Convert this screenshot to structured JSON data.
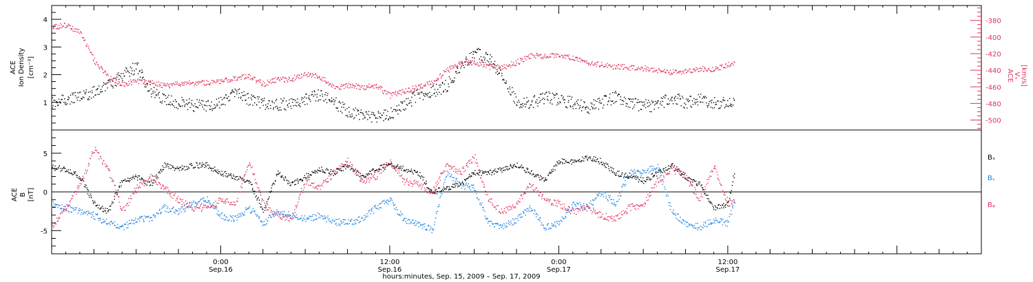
{
  "colors": {
    "black": "#000000",
    "pink": "#e0305a",
    "blue": "#1a7fe0"
  },
  "xaxis": {
    "caption": "hours:minutes, Sep. 15, 2009 – Sep. 17, 2009",
    "ticks": [
      {
        "time": "0:00",
        "date": "Sep.16"
      },
      {
        "time": "12:00",
        "date": "Sep.16"
      },
      {
        "time": "0:00",
        "date": "Sep.17"
      },
      {
        "time": "12:00",
        "date": "Sep.17"
      }
    ]
  },
  "chart_data": [
    {
      "type": "scatter",
      "title": "",
      "x_unit": "hours from 2009-09-15 00:00",
      "xlim": [
        12,
        78
      ],
      "left_axis": {
        "label_lines": [
          "ACE",
          "Ion Density"
        ],
        "unit": "[cm⁻³]",
        "ylim": [
          0,
          4.5
        ],
        "ticks": [
          1,
          2,
          3,
          4
        ]
      },
      "right_axis": {
        "label": "Vₓ",
        "label_extra": "ACE",
        "unit": "[km/s]",
        "ylim": [
          -512,
          -362
        ],
        "ticks": [
          -380,
          -400,
          -420,
          -440,
          -460,
          -480,
          -500
        ]
      },
      "series": [
        {
          "axis": "left",
          "color": "#000000",
          "points": [
            [
              12.0,
              1.0
            ],
            [
              13.0,
              1.1
            ],
            [
              14.0,
              1.2
            ],
            [
              15.0,
              1.4
            ],
            [
              16.0,
              1.6
            ],
            [
              17.0,
              2.0
            ],
            [
              18.0,
              2.3
            ],
            [
              19.0,
              1.4
            ],
            [
              20.0,
              1.1
            ],
            [
              21.0,
              1.0
            ],
            [
              22.0,
              0.9
            ],
            [
              23.0,
              0.9
            ],
            [
              24.0,
              1.0
            ],
            [
              25.0,
              1.4
            ],
            [
              26.0,
              1.1
            ],
            [
              27.0,
              1.0
            ],
            [
              28.0,
              0.9
            ],
            [
              29.0,
              1.0
            ],
            [
              30.0,
              1.1
            ],
            [
              31.0,
              1.3
            ],
            [
              32.0,
              1.0
            ],
            [
              33.0,
              0.7
            ],
            [
              34.0,
              0.5
            ],
            [
              35.0,
              0.5
            ],
            [
              36.0,
              0.6
            ],
            [
              37.0,
              0.9
            ],
            [
              38.0,
              1.3
            ],
            [
              39.0,
              1.4
            ],
            [
              40.0,
              1.6
            ],
            [
              41.0,
              2.2
            ],
            [
              42.0,
              2.8
            ],
            [
              43.0,
              2.6
            ],
            [
              44.0,
              2.0
            ],
            [
              45.0,
              1.0
            ],
            [
              46.0,
              1.0
            ],
            [
              47.0,
              1.2
            ],
            [
              48.0,
              1.1
            ],
            [
              49.0,
              1.0
            ],
            [
              50.0,
              0.8
            ],
            [
              51.0,
              1.0
            ],
            [
              52.0,
              1.2
            ],
            [
              53.0,
              1.0
            ],
            [
              54.0,
              0.9
            ],
            [
              55.0,
              0.9
            ],
            [
              56.0,
              1.2
            ],
            [
              57.0,
              1.0
            ],
            [
              58.0,
              1.1
            ],
            [
              59.0,
              1.0
            ],
            [
              60.0,
              1.0
            ],
            [
              60.5,
              1.0
            ]
          ]
        },
        {
          "axis": "right",
          "color": "#e0305a",
          "points": [
            [
              12.0,
              -388
            ],
            [
              13.0,
              -385
            ],
            [
              14.0,
              -393
            ],
            [
              15.0,
              -428
            ],
            [
              16.0,
              -448
            ],
            [
              17.0,
              -457
            ],
            [
              18.0,
              -452
            ],
            [
              19.0,
              -455
            ],
            [
              20.0,
              -458
            ],
            [
              21.0,
              -456
            ],
            [
              22.0,
              -455
            ],
            [
              23.0,
              -455
            ],
            [
              24.0,
              -453
            ],
            [
              25.0,
              -449
            ],
            [
              26.0,
              -447
            ],
            [
              27.0,
              -456
            ],
            [
              28.0,
              -451
            ],
            [
              29.0,
              -450
            ],
            [
              30.0,
              -445
            ],
            [
              31.0,
              -447
            ],
            [
              32.0,
              -460
            ],
            [
              33.0,
              -458
            ],
            [
              34.0,
              -460
            ],
            [
              35.0,
              -458
            ],
            [
              36.0,
              -470
            ],
            [
              37.0,
              -465
            ],
            [
              38.0,
              -460
            ],
            [
              39.0,
              -455
            ],
            [
              40.0,
              -440
            ],
            [
              41.0,
              -432
            ],
            [
              42.0,
              -430
            ],
            [
              43.0,
              -435
            ],
            [
              44.0,
              -436
            ],
            [
              45.0,
              -430
            ],
            [
              46.0,
              -422
            ],
            [
              47.0,
              -423
            ],
            [
              48.0,
              -420
            ],
            [
              49.0,
              -425
            ],
            [
              50.0,
              -430
            ],
            [
              51.0,
              -433
            ],
            [
              52.0,
              -435
            ],
            [
              53.0,
              -436
            ],
            [
              54.0,
              -437
            ],
            [
              55.0,
              -440
            ],
            [
              56.0,
              -442
            ],
            [
              57.0,
              -441
            ],
            [
              58.0,
              -438
            ],
            [
              59.0,
              -438
            ],
            [
              60.0,
              -433
            ],
            [
              60.5,
              -432
            ]
          ]
        }
      ]
    },
    {
      "type": "scatter",
      "title": "",
      "x_unit": "hours from 2009-09-15 00:00",
      "xlim": [
        12,
        78
      ],
      "left_axis": {
        "label_lines": [
          "ACE",
          "B"
        ],
        "unit": "[nT]",
        "ylim": [
          -8,
          8
        ],
        "ticks": [
          5,
          0,
          -5
        ]
      },
      "zero_line": true,
      "series": [
        {
          "name": "Bₓ",
          "color": "#000000",
          "points": [
            [
              12.0,
              3.2
            ],
            [
              13.0,
              3.0
            ],
            [
              14.0,
              2.0
            ],
            [
              15.0,
              -1.5
            ],
            [
              16.0,
              -2.5
            ],
            [
              17.0,
              1.5
            ],
            [
              18.0,
              2.0
            ],
            [
              19.0,
              1.0
            ],
            [
              20.0,
              3.5
            ],
            [
              21.0,
              3.0
            ],
            [
              22.0,
              3.5
            ],
            [
              23.0,
              3.5
            ],
            [
              24.0,
              2.5
            ],
            [
              25.0,
              2.0
            ],
            [
              26.0,
              1.5
            ],
            [
              27.0,
              -2.5
            ],
            [
              28.0,
              2.5
            ],
            [
              29.0,
              1.0
            ],
            [
              30.0,
              2.0
            ],
            [
              31.0,
              3.0
            ],
            [
              32.0,
              2.5
            ],
            [
              33.0,
              3.5
            ],
            [
              34.0,
              2.0
            ],
            [
              35.0,
              3.0
            ],
            [
              36.0,
              3.5
            ],
            [
              37.0,
              3.0
            ],
            [
              38.0,
              2.5
            ],
            [
              39.0,
              0.0
            ],
            [
              40.0,
              0.5
            ],
            [
              41.0,
              1.0
            ],
            [
              42.0,
              2.5
            ],
            [
              43.0,
              2.5
            ],
            [
              44.0,
              3.0
            ],
            [
              45.0,
              3.5
            ],
            [
              46.0,
              2.5
            ],
            [
              47.0,
              1.5
            ],
            [
              48.0,
              4.0
            ],
            [
              49.0,
              4.0
            ],
            [
              50.0,
              4.5
            ],
            [
              51.0,
              4.0
            ],
            [
              52.0,
              2.5
            ],
            [
              53.0,
              2.0
            ],
            [
              54.0,
              1.5
            ],
            [
              55.0,
              2.5
            ],
            [
              56.0,
              3.5
            ],
            [
              57.0,
              2.0
            ],
            [
              58.0,
              1.0
            ],
            [
              59.0,
              -2.0
            ],
            [
              60.0,
              -1.5
            ],
            [
              60.5,
              3.0
            ]
          ]
        },
        {
          "name": "Bᵧ",
          "color": "#1a7fe0",
          "points": [
            [
              12.0,
              -1.5
            ],
            [
              13.0,
              -2.0
            ],
            [
              14.0,
              -2.5
            ],
            [
              15.0,
              -3.0
            ],
            [
              16.0,
              -4.0
            ],
            [
              17.0,
              -4.5
            ],
            [
              18.0,
              -3.5
            ],
            [
              19.0,
              -3.5
            ],
            [
              20.0,
              -2.0
            ],
            [
              21.0,
              -2.5
            ],
            [
              22.0,
              -1.5
            ],
            [
              23.0,
              -1.0
            ],
            [
              24.0,
              -3.0
            ],
            [
              25.0,
              -3.5
            ],
            [
              26.0,
              -2.0
            ],
            [
              27.0,
              -4.0
            ],
            [
              28.0,
              -2.5
            ],
            [
              29.0,
              -3.0
            ],
            [
              30.0,
              -3.5
            ],
            [
              31.0,
              -3.0
            ],
            [
              32.0,
              -3.8
            ],
            [
              33.0,
              -4.0
            ],
            [
              34.0,
              -3.5
            ],
            [
              35.0,
              -2.0
            ],
            [
              36.0,
              -1.0
            ],
            [
              37.0,
              -3.5
            ],
            [
              38.0,
              -4.0
            ],
            [
              39.0,
              -5.0
            ],
            [
              40.0,
              2.5
            ],
            [
              41.0,
              1.0
            ],
            [
              42.0,
              0.5
            ],
            [
              43.0,
              -4.0
            ],
            [
              44.0,
              -4.5
            ],
            [
              45.0,
              -3.5
            ],
            [
              46.0,
              -2.0
            ],
            [
              47.0,
              -4.5
            ],
            [
              48.0,
              -4.0
            ],
            [
              49.0,
              -1.5
            ],
            [
              50.0,
              -2.0
            ],
            [
              51.0,
              0.0
            ],
            [
              52.0,
              -1.5
            ],
            [
              53.0,
              2.5
            ],
            [
              54.0,
              2.5
            ],
            [
              55.0,
              3.5
            ],
            [
              56.0,
              -2.5
            ],
            [
              57.0,
              -4.0
            ],
            [
              58.0,
              -4.5
            ],
            [
              59.0,
              -3.5
            ],
            [
              60.0,
              -4.0
            ],
            [
              60.5,
              -0.5
            ]
          ]
        },
        {
          "name": "Bᵩ",
          "color": "#e0305a",
          "points": [
            [
              12.0,
              -4.5
            ],
            [
              13.0,
              -2.0
            ],
            [
              14.0,
              1.0
            ],
            [
              15.0,
              5.5
            ],
            [
              16.0,
              3.0
            ],
            [
              17.0,
              -2.5
            ],
            [
              18.0,
              0.5
            ],
            [
              19.0,
              2.0
            ],
            [
              20.0,
              0.5
            ],
            [
              21.0,
              -1.0
            ],
            [
              22.0,
              -2.0
            ],
            [
              23.0,
              -2.0
            ],
            [
              24.0,
              -1.0
            ],
            [
              25.0,
              -1.5
            ],
            [
              26.0,
              4.0
            ],
            [
              27.0,
              -1.5
            ],
            [
              28.0,
              -3.0
            ],
            [
              29.0,
              -3.5
            ],
            [
              30.0,
              1.5
            ],
            [
              31.0,
              0.5
            ],
            [
              32.0,
              2.5
            ],
            [
              33.0,
              4.0
            ],
            [
              34.0,
              1.5
            ],
            [
              35.0,
              2.0
            ],
            [
              36.0,
              4.0
            ],
            [
              37.0,
              1.5
            ],
            [
              38.0,
              1.0
            ],
            [
              39.0,
              0.0
            ],
            [
              40.0,
              3.5
            ],
            [
              41.0,
              2.5
            ],
            [
              42.0,
              4.5
            ],
            [
              43.0,
              -1.0
            ],
            [
              44.0,
              -2.5
            ],
            [
              45.0,
              -1.5
            ],
            [
              46.0,
              1.0
            ],
            [
              47.0,
              -1.0
            ],
            [
              48.0,
              -1.5
            ],
            [
              49.0,
              -2.5
            ],
            [
              50.0,
              -2.0
            ],
            [
              51.0,
              -3.0
            ],
            [
              52.0,
              -3.5
            ],
            [
              53.0,
              -2.0
            ],
            [
              54.0,
              -1.5
            ],
            [
              55.0,
              1.5
            ],
            [
              56.0,
              3.0
            ],
            [
              57.0,
              2.0
            ],
            [
              58.0,
              -1.0
            ],
            [
              59.0,
              3.5
            ],
            [
              60.0,
              -1.5
            ],
            [
              60.5,
              -1.0
            ]
          ]
        }
      ]
    }
  ]
}
